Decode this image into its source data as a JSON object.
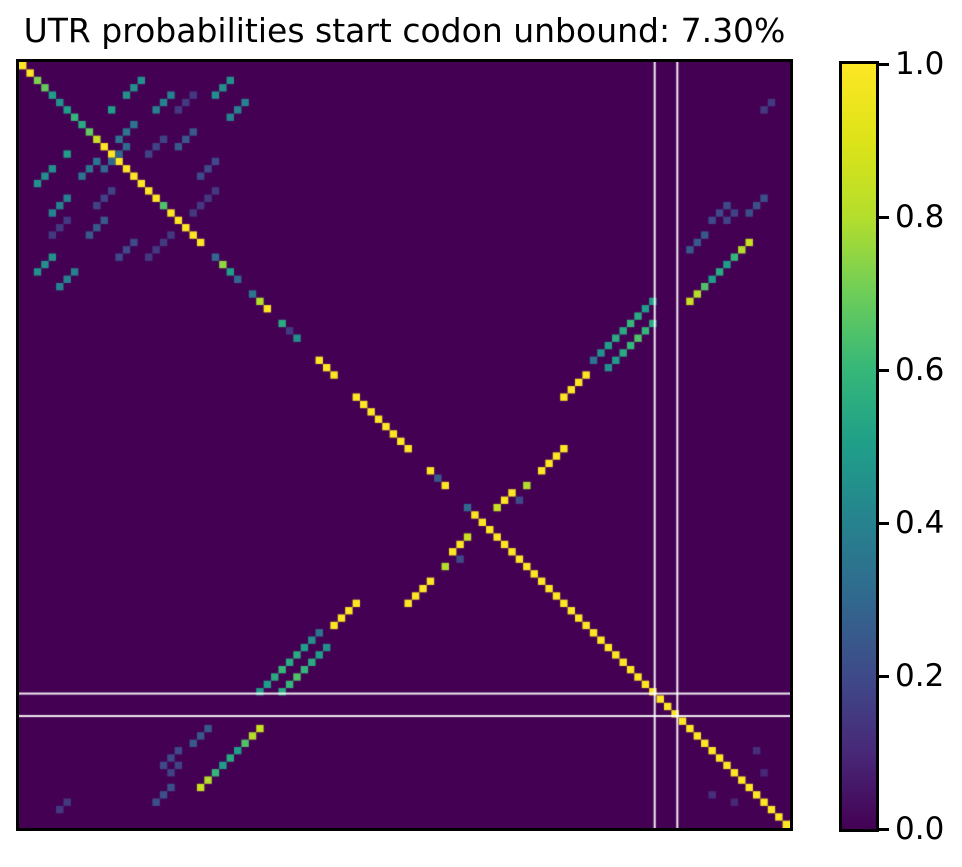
{
  "title": "UTR probabilities start codon unbound: 7.30%",
  "colorbar": {
    "ticks": [
      {
        "label": "1.0",
        "value": 1.0
      },
      {
        "label": "0.8",
        "value": 0.8
      },
      {
        "label": "0.6",
        "value": 0.6
      },
      {
        "label": "0.4",
        "value": 0.4
      },
      {
        "label": "0.2",
        "value": 0.2
      },
      {
        "label": "0.0",
        "value": 0.0
      }
    ]
  },
  "chart_data": {
    "type": "heatmap",
    "title": "UTR probabilities start codon unbound: 7.30%",
    "colormap": "viridis",
    "colormap_stops": [
      [
        0.0,
        "#440154"
      ],
      [
        0.1,
        "#482878"
      ],
      [
        0.2,
        "#3e4a89"
      ],
      [
        0.3,
        "#31688e"
      ],
      [
        0.4,
        "#26828e"
      ],
      [
        0.5,
        "#1f9e89"
      ],
      [
        0.6,
        "#35b779"
      ],
      [
        0.7,
        "#6dcd59"
      ],
      [
        0.8,
        "#b4de2c"
      ],
      [
        0.9,
        "#dde318"
      ],
      [
        1.0,
        "#fde725"
      ]
    ],
    "value_range": [
      0,
      1
    ],
    "grid_size": 104,
    "background_value": 0.0,
    "symmetric": true,
    "guide_lines": {
      "color": "#ffffff",
      "positions": [
        85.75,
        88.8
      ]
    },
    "diagonal_runs": [
      {
        "row": 0,
        "len": 2,
        "v": 1.0
      },
      {
        "row": 2,
        "len": 1,
        "v": 0.72
      },
      {
        "row": 3,
        "len": 1,
        "v": 0.68
      },
      {
        "row": 4,
        "len": 1,
        "v": 0.5
      },
      {
        "row": 5,
        "len": 1,
        "v": 0.45
      },
      {
        "row": 6,
        "len": 1,
        "v": 0.5
      },
      {
        "row": 7,
        "len": 1,
        "v": 0.6
      },
      {
        "row": 8,
        "len": 1,
        "v": 0.55
      },
      {
        "row": 9,
        "len": 1,
        "v": 0.68
      },
      {
        "row": 10,
        "len": 1,
        "v": 0.85
      },
      {
        "row": 11,
        "len": 8,
        "v": 1.0
      },
      {
        "row": 19,
        "len": 1,
        "v": 0.65
      },
      {
        "row": 20,
        "len": 5,
        "v": 1.0
      },
      {
        "row": 26,
        "len": 1,
        "v": 0.3
      },
      {
        "row": 27,
        "len": 1,
        "v": 0.75
      },
      {
        "row": 28,
        "len": 1,
        "v": 0.5
      },
      {
        "row": 29,
        "len": 1,
        "v": 0.3
      },
      {
        "row": 31,
        "len": 1,
        "v": 0.35
      },
      {
        "row": 32,
        "len": 1,
        "v": 0.8
      },
      {
        "row": 33,
        "len": 1,
        "v": 1.0
      },
      {
        "row": 35,
        "len": 1,
        "v": 0.55
      },
      {
        "row": 36,
        "len": 1,
        "v": 0.15
      },
      {
        "row": 37,
        "len": 1,
        "v": 0.45
      },
      {
        "row": 40,
        "len": 3,
        "v": 1.0
      },
      {
        "row": 45,
        "len": 8,
        "v": 1.0
      },
      {
        "row": 55,
        "len": 1,
        "v": 1.0
      },
      {
        "row": 56,
        "len": 1,
        "v": 0.25
      },
      {
        "row": 57,
        "len": 1,
        "v": 1.0
      },
      {
        "row": 60,
        "len": 1,
        "v": 0.3
      },
      {
        "row": 61,
        "len": 43,
        "v": 1.0
      }
    ],
    "pair_runs": [
      {
        "row": 4,
        "col": 14,
        "len": 3,
        "v": 0.45
      },
      {
        "row": 6,
        "col": 18,
        "len": 3,
        "v": 0.4
      },
      {
        "row": 6,
        "col": 12,
        "len": 1,
        "v": 0.5
      },
      {
        "row": 10,
        "col": 13,
        "len": 3,
        "v": 0.35
      },
      {
        "row": 12,
        "col": 13,
        "len": 2,
        "v": 0.3
      },
      {
        "row": 4,
        "col": 26,
        "len": 3,
        "v": 0.45
      },
      {
        "row": 7,
        "col": 28,
        "len": 3,
        "v": 0.4
      },
      {
        "row": 6,
        "col": 21,
        "len": 3,
        "v": 0.15
      },
      {
        "row": 11,
        "col": 21,
        "len": 3,
        "v": 0.25
      },
      {
        "row": 12,
        "col": 17,
        "len": 3,
        "v": 0.18
      },
      {
        "row": 15,
        "col": 24,
        "len": 3,
        "v": 0.2
      },
      {
        "row": 20,
        "col": 23,
        "len": 4,
        "v": 0.15
      },
      {
        "row": 40,
        "col": 77,
        "len": 9,
        "values": [
          0.35,
          0.45,
          0.5,
          0.55,
          0.55,
          0.6,
          0.55,
          0.5,
          0.5
        ]
      },
      {
        "row": 41,
        "col": 79,
        "len": 7,
        "values": [
          0.45,
          0.5,
          0.55,
          0.6,
          0.65,
          0.6,
          0.55
        ]
      },
      {
        "row": 32,
        "col": 90,
        "len": 9,
        "values": [
          0.85,
          0.8,
          0.65,
          0.5,
          0.55,
          0.5,
          0.6,
          0.8,
          0.85
        ]
      },
      {
        "row": 25,
        "col": 90,
        "len": 3,
        "v": 0.25
      },
      {
        "row": 21,
        "col": 93,
        "len": 3,
        "v": 0.2
      },
      {
        "row": 21,
        "col": 95,
        "len": 2,
        "v": 0.18
      },
      {
        "row": 20,
        "col": 98,
        "len": 3,
        "v": 0.22
      },
      {
        "row": 45,
        "col": 73,
        "len": 4,
        "v": 1.0
      },
      {
        "row": 60,
        "col": 64,
        "len": 3,
        "values": [
          0.85,
          1,
          1
        ]
      },
      {
        "row": 57,
        "col": 68,
        "len": 1,
        "v": 0.8
      },
      {
        "row": 59,
        "col": 67,
        "len": 1,
        "v": 0.2
      },
      {
        "row": 55,
        "col": 70,
        "len": 4,
        "v": 1.0
      },
      {
        "row": 93,
        "col": 99,
        "len": 1,
        "v": 0.12
      },
      {
        "row": 96,
        "col": 100,
        "len": 1,
        "v": 0.1
      },
      {
        "row": 101,
        "col": 5,
        "len": 2,
        "v": 0.15
      }
    ]
  }
}
